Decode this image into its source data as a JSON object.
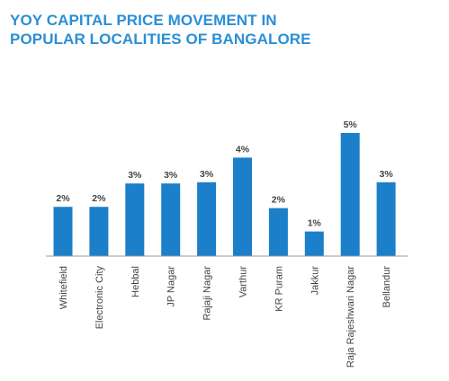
{
  "title_lines": [
    "YOY CAPITAL PRICE MOVEMENT IN",
    "POPULAR LOCALITIES OF BANGALORE"
  ],
  "colors": {
    "title": "#2a8fd6",
    "bar": "#1b7fc9",
    "label": "#444444",
    "axis": "#9a9a9a"
  },
  "chart_data": {
    "type": "bar",
    "title": "YOY CAPITAL PRICE MOVEMENT IN POPULAR LOCALITIES OF BANGALORE",
    "xlabel": "",
    "ylabel": "",
    "categories": [
      "Whitefield",
      "Electronic City",
      "Hebbal",
      "JP Nagar",
      "Rajaji Nagar",
      "Varthur",
      "KR Puram",
      "Jakkur",
      "Raja Rajeshwari Nagar",
      "Bellandur"
    ],
    "values": [
      2,
      2,
      3,
      3,
      3,
      4,
      2,
      1,
      5,
      3
    ],
    "value_labels": [
      "2%",
      "2%",
      "3%",
      "3%",
      "3%",
      "4%",
      "2%",
      "1%",
      "5%",
      "3%"
    ],
    "relative_heights": [
      0.4,
      0.4,
      0.59,
      0.59,
      0.6,
      0.8,
      0.39,
      0.2,
      1.0,
      0.6
    ],
    "ylim": [
      0,
      5
    ],
    "grid": false,
    "legend": "none"
  }
}
